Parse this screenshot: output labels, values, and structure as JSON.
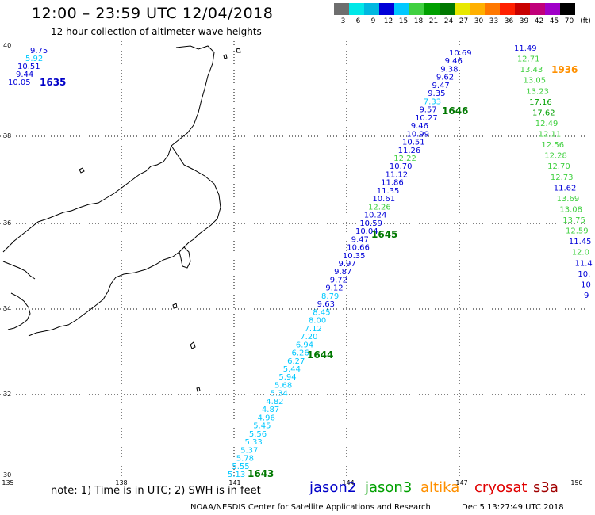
{
  "header": {
    "title": "12:00 – 23:59 UTC 12/04/2018",
    "subtitle": "12 hour collection of altimeter wave heights"
  },
  "scale": {
    "labels": [
      "3",
      "6",
      "9",
      "12",
      "15",
      "18",
      "21",
      "24",
      "27",
      "30",
      "33",
      "36",
      "39",
      "42",
      "45",
      "70"
    ],
    "colors": [
      "#6e6e6e",
      "#00e8e8",
      "#00b8e0",
      "#0000d8",
      "#00c8ff",
      "#40d040",
      "#00a000",
      "#007800",
      "#e8e800",
      "#ffb000",
      "#ff7800",
      "#ff2000",
      "#c80000",
      "#c0007a",
      "#a000c8",
      "#000000"
    ],
    "unit": "(ft)"
  },
  "axes": {
    "lat_labels": [
      "40",
      "38",
      "36",
      "34",
      "32",
      "30"
    ],
    "lon_labels": [
      "135",
      "138",
      "141",
      "144",
      "147",
      "150"
    ]
  },
  "tracks": [
    {
      "name": "pass-1635",
      "time_label": "1635",
      "time_color": "#0000c8",
      "obs": [
        {
          "v": "9.75",
          "c": "#0000d8"
        },
        {
          "v": "5.92",
          "c": "#00c8ff"
        },
        {
          "v": "10.51",
          "c": "#0000d8"
        },
        {
          "v": "9.44",
          "c": "#0000d8"
        },
        {
          "v": "10.05",
          "c": "#0000d8"
        }
      ]
    },
    {
      "name": "pass-1643-1644",
      "time_labels": [
        "1643",
        "1644"
      ],
      "obs": [
        {
          "v": "5.13",
          "c": "#00c8ff"
        },
        {
          "v": "5.55",
          "c": "#00c8ff"
        },
        {
          "v": "5.78",
          "c": "#00c8ff"
        },
        {
          "v": "5.37",
          "c": "#00c8ff"
        },
        {
          "v": "5.33",
          "c": "#00c8ff"
        },
        {
          "v": "5.56",
          "c": "#00c8ff"
        },
        {
          "v": "5.45",
          "c": "#00c8ff"
        },
        {
          "v": "4.96",
          "c": "#00c8ff"
        },
        {
          "v": "4.87",
          "c": "#00c8ff"
        },
        {
          "v": "4.82",
          "c": "#00c8ff"
        },
        {
          "v": "5.34",
          "c": "#00c8ff"
        },
        {
          "v": "5.68",
          "c": "#00c8ff"
        },
        {
          "v": "5.94",
          "c": "#00c8ff"
        },
        {
          "v": "5.44",
          "c": "#00c8ff"
        },
        {
          "v": "6.27",
          "c": "#00c8ff"
        },
        {
          "v": "6.26",
          "c": "#00c8ff"
        },
        {
          "v": "6.94",
          "c": "#00c8ff"
        },
        {
          "v": "7.20",
          "c": "#00c8ff"
        },
        {
          "v": "7.12",
          "c": "#00c8ff"
        },
        {
          "v": "8.00",
          "c": "#00c8ff"
        },
        {
          "v": "8.45",
          "c": "#00c8ff"
        },
        {
          "v": "9.63",
          "c": "#0000d8"
        },
        {
          "v": "8.79",
          "c": "#00c8ff"
        },
        {
          "v": "9.12",
          "c": "#0000d8"
        },
        {
          "v": "9.72",
          "c": "#0000d8"
        },
        {
          "v": "9.87",
          "c": "#0000d8"
        },
        {
          "v": "9.97",
          "c": "#0000d8"
        },
        {
          "v": "10.35",
          "c": "#0000d8"
        },
        {
          "v": "10.66",
          "c": "#0000d8"
        },
        {
          "v": "9.47",
          "c": "#0000d8"
        },
        {
          "v": "10.04",
          "c": "#0000d8"
        },
        {
          "v": "10.59",
          "c": "#0000d8"
        },
        {
          "v": "10.24",
          "c": "#0000d8"
        },
        {
          "v": "12.26",
          "c": "#40d040"
        },
        {
          "v": "10.61",
          "c": "#0000d8"
        },
        {
          "v": "11.35",
          "c": "#0000d8"
        },
        {
          "v": "11.86",
          "c": "#0000d8"
        },
        {
          "v": "11.12",
          "c": "#0000d8"
        },
        {
          "v": "10.70",
          "c": "#0000d8"
        },
        {
          "v": "12.22",
          "c": "#40d040"
        },
        {
          "v": "11.26",
          "c": "#0000d8"
        },
        {
          "v": "10.51",
          "c": "#0000d8"
        },
        {
          "v": "10.99",
          "c": "#0000d8"
        },
        {
          "v": "9.46",
          "c": "#0000d8"
        },
        {
          "v": "10.27",
          "c": "#0000d8"
        },
        {
          "v": "9.57",
          "c": "#0000d8"
        },
        {
          "v": "7.33",
          "c": "#00c8ff"
        },
        {
          "v": "9.35",
          "c": "#0000d8"
        },
        {
          "v": "9.47",
          "c": "#0000d8"
        },
        {
          "v": "9.62",
          "c": "#0000d8"
        },
        {
          "v": "9.38",
          "c": "#0000d8"
        },
        {
          "v": "9.46",
          "c": "#0000d8"
        },
        {
          "v": "10.69",
          "c": "#0000d8"
        }
      ]
    },
    {
      "name": "pass-1645",
      "time_label": "1645",
      "time_color": "#007800"
    },
    {
      "name": "pass-1646",
      "time_label": "1646",
      "time_color": "#007800"
    },
    {
      "name": "pass-1936",
      "time_label": "1936",
      "time_color": "#ff9000",
      "obs": [
        {
          "v": "11.49",
          "c": "#0000d8"
        },
        {
          "v": "12.71",
          "c": "#40d040"
        },
        {
          "v": "13.43",
          "c": "#40d040"
        },
        {
          "v": "13.05",
          "c": "#40d040"
        },
        {
          "v": "13.23",
          "c": "#40d040"
        },
        {
          "v": "17.16",
          "c": "#00a000"
        },
        {
          "v": "17.62",
          "c": "#00a000"
        },
        {
          "v": "12.49",
          "c": "#40d040"
        },
        {
          "v": "12.11",
          "c": "#40d040"
        },
        {
          "v": "12.56",
          "c": "#40d040"
        },
        {
          "v": "12.28",
          "c": "#40d040"
        },
        {
          "v": "12.70",
          "c": "#40d040"
        },
        {
          "v": "12.73",
          "c": "#40d040"
        },
        {
          "v": "11.62",
          "c": "#0000d8"
        },
        {
          "v": "13.69",
          "c": "#40d040"
        },
        {
          "v": "13.08",
          "c": "#40d040"
        },
        {
          "v": "13.75",
          "c": "#40d040"
        },
        {
          "v": "12.59",
          "c": "#40d040"
        },
        {
          "v": "11.45",
          "c": "#0000d8"
        },
        {
          "v": "12.0",
          "c": "#40d040"
        },
        {
          "v": "11.4",
          "c": "#0000d8"
        },
        {
          "v": "10.",
          "c": "#0000d8"
        },
        {
          "v": "10",
          "c": "#0000d8"
        },
        {
          "v": "9",
          "c": "#0000d8"
        }
      ]
    }
  ],
  "footer": {
    "note": "note: 1) Time is in UTC; 2) SWH is in feet",
    "legend": [
      {
        "label": "jason2",
        "color": "#0000c8"
      },
      {
        "label": "jason3",
        "color": "#00a000"
      },
      {
        "label": "altika",
        "color": "#ff9000"
      },
      {
        "label": "cryosat",
        "color": "#e00000"
      },
      {
        "label": "s3a",
        "color": "#a00000"
      }
    ],
    "credit": "NOAA/NESDIS Center for Satellite Applications and Research",
    "timestamp": "Dec  5 13:27:49 UTC 2018"
  }
}
